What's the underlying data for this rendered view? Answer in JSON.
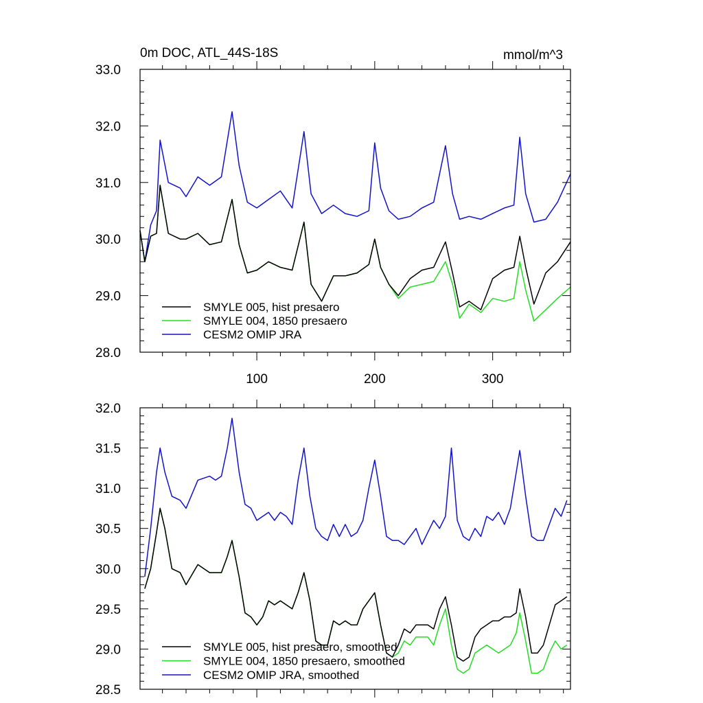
{
  "figure": {
    "title_left": "0m DOC, ATL_44S-18S",
    "title_right": "mmol/m^3"
  },
  "colors": {
    "black": "#000000",
    "green": "#22dd22",
    "blue": "#1111cc"
  },
  "chart_data": [
    {
      "type": "line",
      "xlim": [
        1,
        366
      ],
      "ylim": [
        28.0,
        33.0
      ],
      "x_ticks": [
        100,
        200,
        300
      ],
      "x_tick_labels": [
        "100",
        "200",
        "300"
      ],
      "y_ticks": [
        28.0,
        29.0,
        30.0,
        31.0,
        32.0,
        33.0
      ],
      "y_tick_labels": [
        "28.0",
        "29.0",
        "30.0",
        "31.0",
        "32.0",
        "33.0"
      ],
      "y_minor_step": 0.2,
      "x_minor_step": 20,
      "legend": "bottom-left",
      "series": [
        {
          "name": "SMYLE 005, hist presaero",
          "color": "#000000",
          "x": [
            1,
            5,
            10,
            15,
            18,
            25,
            35,
            40,
            50,
            60,
            70,
            79,
            85,
            92,
            100,
            110,
            120,
            130,
            140,
            146,
            155,
            165,
            175,
            185,
            195,
            200,
            205,
            212,
            220,
            230,
            240,
            250,
            260,
            266,
            272,
            280,
            290,
            300,
            310,
            318,
            323,
            328,
            335,
            345,
            355,
            366
          ],
          "y": [
            30.15,
            29.6,
            30.05,
            30.1,
            30.95,
            30.1,
            30.0,
            30.0,
            30.1,
            29.9,
            29.95,
            30.7,
            29.9,
            29.4,
            29.45,
            29.6,
            29.5,
            29.45,
            30.3,
            29.2,
            28.9,
            29.35,
            29.35,
            29.4,
            29.55,
            30.0,
            29.5,
            29.2,
            29.0,
            29.3,
            29.45,
            29.5,
            29.95,
            29.4,
            28.8,
            28.9,
            28.75,
            29.3,
            29.45,
            29.5,
            30.05,
            29.5,
            28.85,
            29.4,
            29.6,
            29.95
          ]
        },
        {
          "name": "SMYLE 004, 1850 presaero",
          "color": "#22dd22",
          "x": [
            1,
            5,
            10,
            15,
            18,
            25,
            35,
            40,
            50,
            60,
            70,
            79,
            85,
            92,
            100,
            110,
            120,
            130,
            140,
            146,
            155,
            165,
            175,
            185,
            195,
            200,
            205,
            212,
            220,
            230,
            240,
            250,
            260,
            266,
            272,
            280,
            290,
            300,
            310,
            318,
            323,
            328,
            335,
            345,
            355,
            366
          ],
          "y": [
            30.15,
            29.6,
            30.05,
            30.1,
            30.95,
            30.1,
            30.0,
            30.0,
            30.1,
            29.9,
            29.95,
            30.7,
            29.9,
            29.4,
            29.45,
            29.6,
            29.5,
            29.45,
            30.3,
            29.2,
            28.9,
            29.35,
            29.35,
            29.4,
            29.55,
            30.0,
            29.5,
            29.2,
            28.95,
            29.15,
            29.2,
            29.25,
            29.6,
            29.2,
            28.6,
            28.85,
            28.7,
            28.95,
            28.9,
            28.95,
            29.6,
            29.1,
            28.55,
            28.75,
            28.95,
            29.15
          ]
        },
        {
          "name": "CESM2 OMIP JRA",
          "color": "#1111cc",
          "x": [
            1,
            5,
            10,
            15,
            18,
            25,
            35,
            40,
            50,
            60,
            70,
            79,
            85,
            92,
            100,
            110,
            120,
            130,
            140,
            146,
            155,
            165,
            175,
            185,
            195,
            200,
            205,
            212,
            220,
            230,
            240,
            250,
            260,
            266,
            272,
            280,
            290,
            300,
            310,
            318,
            323,
            328,
            335,
            345,
            355,
            366
          ],
          "y": [
            30.15,
            29.6,
            30.25,
            30.5,
            31.75,
            31.0,
            30.9,
            30.75,
            31.1,
            30.95,
            31.1,
            32.25,
            31.3,
            30.65,
            30.55,
            30.7,
            30.85,
            30.55,
            31.9,
            30.8,
            30.45,
            30.6,
            30.45,
            30.4,
            30.5,
            31.7,
            30.9,
            30.5,
            30.35,
            30.4,
            30.55,
            30.65,
            31.65,
            30.8,
            30.35,
            30.4,
            30.35,
            30.45,
            30.55,
            30.6,
            31.8,
            30.8,
            30.3,
            30.35,
            30.65,
            31.15
          ]
        }
      ],
      "legend_entries": [
        "SMYLE 005, hist presaero",
        "SMYLE 004, 1850 presaero",
        "CESM2 OMIP JRA"
      ]
    },
    {
      "type": "line",
      "xlim": [
        1,
        366
      ],
      "ylim": [
        28.5,
        32.0
      ],
      "x_ticks": [
        100,
        200,
        300
      ],
      "y_ticks": [
        28.5,
        29.0,
        29.5,
        30.0,
        30.5,
        31.0,
        31.5,
        32.0
      ],
      "y_tick_labels": [
        "28.5",
        "29.0",
        "29.5",
        "30.0",
        "30.5",
        "31.0",
        "31.5",
        "32.0"
      ],
      "y_minor_step": 0.1,
      "x_minor_step": 20,
      "legend": "bottom-left",
      "series": [
        {
          "name": "SMYLE 005, hist presaero, smoothed",
          "color": "#000000",
          "x": [
            5,
            10,
            15,
            18,
            22,
            28,
            35,
            40,
            50,
            60,
            65,
            70,
            75,
            79,
            85,
            90,
            95,
            100,
            105,
            110,
            115,
            120,
            125,
            130,
            135,
            140,
            145,
            150,
            155,
            160,
            165,
            170,
            175,
            180,
            185,
            190,
            195,
            200,
            205,
            210,
            215,
            220,
            225,
            230,
            235,
            240,
            245,
            250,
            255,
            260,
            265,
            270,
            275,
            280,
            285,
            290,
            295,
            300,
            305,
            310,
            315,
            320,
            323,
            328,
            333,
            338,
            343,
            348,
            353,
            358,
            363
          ],
          "y": [
            29.75,
            30.0,
            30.45,
            30.75,
            30.5,
            30.0,
            29.95,
            29.8,
            30.05,
            29.95,
            29.95,
            29.95,
            30.15,
            30.35,
            29.9,
            29.45,
            29.4,
            29.3,
            29.4,
            29.6,
            29.55,
            29.6,
            29.55,
            29.5,
            29.7,
            29.95,
            29.6,
            29.1,
            29.05,
            29.05,
            29.35,
            29.3,
            29.35,
            29.3,
            29.3,
            29.5,
            29.6,
            29.7,
            29.3,
            28.95,
            28.9,
            29.05,
            29.25,
            29.2,
            29.3,
            29.3,
            29.3,
            29.25,
            29.5,
            29.65,
            29.3,
            28.9,
            28.85,
            28.9,
            29.15,
            29.25,
            29.3,
            29.35,
            29.35,
            29.4,
            29.4,
            29.45,
            29.75,
            29.4,
            28.95,
            28.95,
            29.05,
            29.3,
            29.55,
            29.6,
            29.65
          ]
        },
        {
          "name": "SMYLE 004, 1850 presaero, smoothed",
          "color": "#22dd22",
          "x": [
            5,
            10,
            15,
            18,
            22,
            28,
            35,
            40,
            50,
            60,
            65,
            70,
            75,
            79,
            85,
            90,
            95,
            100,
            105,
            110,
            115,
            120,
            125,
            130,
            135,
            140,
            145,
            150,
            155,
            160,
            165,
            170,
            175,
            180,
            185,
            190,
            195,
            200,
            205,
            210,
            215,
            220,
            225,
            230,
            235,
            240,
            245,
            250,
            255,
            260,
            265,
            270,
            275,
            280,
            285,
            290,
            295,
            300,
            305,
            310,
            315,
            320,
            323,
            328,
            333,
            338,
            343,
            348,
            353,
            358,
            363
          ],
          "y": [
            29.75,
            30.0,
            30.45,
            30.75,
            30.5,
            30.0,
            29.95,
            29.8,
            30.05,
            29.95,
            29.95,
            29.95,
            30.15,
            30.35,
            29.9,
            29.45,
            29.4,
            29.3,
            29.4,
            29.6,
            29.55,
            29.6,
            29.55,
            29.5,
            29.7,
            29.95,
            29.6,
            29.1,
            29.05,
            29.05,
            29.35,
            29.3,
            29.35,
            29.3,
            29.3,
            29.5,
            29.6,
            29.7,
            29.3,
            28.95,
            28.9,
            28.95,
            29.1,
            29.05,
            29.15,
            29.15,
            29.15,
            29.05,
            29.3,
            29.5,
            29.05,
            28.75,
            28.7,
            28.75,
            28.95,
            29.0,
            29.05,
            29.0,
            28.95,
            29.0,
            29.05,
            29.2,
            29.45,
            29.1,
            28.7,
            28.7,
            28.75,
            28.95,
            29.1,
            29.0,
            29.05
          ]
        },
        {
          "name": "CESM2 OMIP JRA, smoothed",
          "color": "#1111cc",
          "x": [
            5,
            10,
            15,
            18,
            22,
            28,
            35,
            40,
            50,
            60,
            65,
            70,
            75,
            79,
            85,
            90,
            95,
            100,
            105,
            110,
            115,
            120,
            125,
            130,
            135,
            140,
            145,
            150,
            155,
            160,
            165,
            170,
            175,
            180,
            185,
            190,
            195,
            200,
            205,
            210,
            215,
            220,
            225,
            230,
            235,
            240,
            245,
            250,
            255,
            260,
            265,
            270,
            275,
            280,
            285,
            290,
            295,
            300,
            305,
            310,
            315,
            320,
            323,
            328,
            333,
            338,
            343,
            348,
            353,
            358,
            363
          ],
          "y": [
            29.9,
            30.5,
            31.2,
            31.5,
            31.2,
            30.9,
            30.85,
            30.75,
            31.1,
            31.15,
            31.1,
            31.15,
            31.5,
            31.87,
            31.2,
            30.8,
            30.75,
            30.6,
            30.65,
            30.7,
            30.6,
            30.7,
            30.65,
            30.55,
            31.1,
            31.5,
            30.9,
            30.5,
            30.4,
            30.35,
            30.55,
            30.4,
            30.55,
            30.4,
            30.45,
            30.6,
            31.0,
            31.35,
            30.9,
            30.4,
            30.35,
            30.35,
            30.3,
            30.4,
            30.5,
            30.3,
            30.45,
            30.6,
            30.5,
            30.65,
            31.5,
            30.6,
            30.4,
            30.35,
            30.5,
            30.4,
            30.65,
            30.6,
            30.7,
            30.55,
            30.75,
            31.2,
            31.47,
            30.9,
            30.4,
            30.35,
            30.35,
            30.55,
            30.75,
            30.65,
            30.85
          ]
        }
      ],
      "legend_entries": [
        "SMYLE 005, hist presaero, smoothed",
        "SMYLE 004, 1850 presaero, smoothed",
        "CESM2 OMIP JRA, smoothed"
      ]
    }
  ]
}
